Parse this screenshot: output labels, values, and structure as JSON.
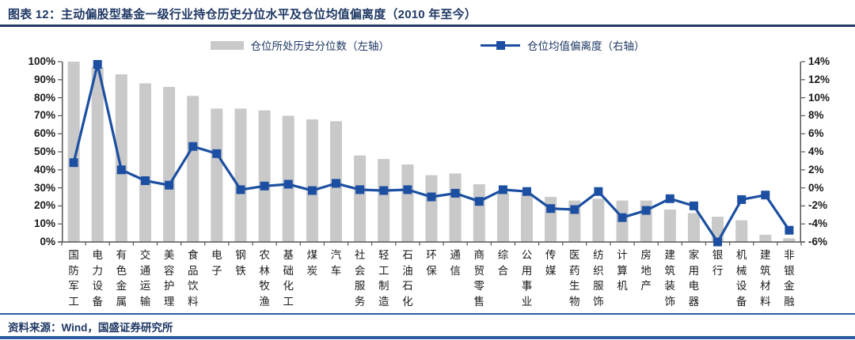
{
  "header": {
    "title": "图表 12：主动偏股型基金一级行业持仓历史分位水平及仓位均值偏离度（2010 年至今）"
  },
  "legend": {
    "bar_label": "仓位所处历史分位数（左轴）",
    "line_label": "仓位均值偏离度（右轴）"
  },
  "source": "资料来源：Wind，国盛证券研究所",
  "colors": {
    "navy_text": "#1F3864",
    "line": "#1C4FA1",
    "bar": "#C9C9C9",
    "axis": "#555555",
    "tick_label": "#1A1A1A",
    "separator": "#2E5C9E"
  },
  "chart_data": {
    "type": "bar",
    "subtype": "bar+line dual axis",
    "title": "主动偏股型基金一级行业持仓历史分位水平及仓位均值偏离度（2010 年至今）",
    "grid": false,
    "legend_position": "top",
    "categories": [
      "国防军工",
      "电力设备",
      "有色金属",
      "交通运输",
      "美容护理",
      "食品饮料",
      "电子",
      "钢铁",
      "农林牧渔",
      "基础化工",
      "煤炭",
      "汽车",
      "社会服务",
      "轻工制造",
      "石油石化",
      "环保",
      "通信",
      "商贸零售",
      "综合",
      "公用事业",
      "传媒",
      "医药生物",
      "纺织服饰",
      "计算机",
      "房地产",
      "建筑装饰",
      "家用电器",
      "银行",
      "机械设备",
      "建筑材料",
      "非银金融"
    ],
    "series": [
      {
        "name": "仓位所处历史分位数（左轴）",
        "type": "bar",
        "axis": "left",
        "unit": "%",
        "values": [
          100,
          97,
          93,
          88,
          86,
          81,
          74,
          74,
          73,
          70,
          68,
          67,
          48,
          46,
          43,
          37,
          38,
          32,
          27,
          27,
          25,
          23,
          24,
          23,
          23,
          18,
          16,
          14,
          12,
          4,
          2
        ]
      },
      {
        "name": "仓位均值偏离度（右轴）",
        "type": "line",
        "axis": "right",
        "unit": "%",
        "values": [
          2.8,
          13.7,
          2.0,
          0.8,
          0.3,
          4.6,
          3.8,
          -0.2,
          0.2,
          0.4,
          -0.3,
          0.5,
          -0.2,
          -0.3,
          -0.2,
          -1.0,
          -0.6,
          -1.5,
          -0.2,
          -0.4,
          -2.3,
          -2.4,
          -0.4,
          -3.3,
          -2.5,
          -1.2,
          -2.0,
          -6.0,
          -1.3,
          -0.8,
          -4.7
        ]
      }
    ],
    "left_axis": {
      "min": 0,
      "max": 100,
      "step": 10,
      "ticks": [
        "100%",
        "90%",
        "80%",
        "70%",
        "60%",
        "50%",
        "40%",
        "30%",
        "20%",
        "10%",
        "0%"
      ]
    },
    "right_axis": {
      "min": -6,
      "max": 14,
      "step": 2,
      "ticks": [
        "14%",
        "12%",
        "10%",
        "8%",
        "6%",
        "4%",
        "2%",
        "0%",
        "-2%",
        "-4%",
        "-6%"
      ]
    }
  }
}
